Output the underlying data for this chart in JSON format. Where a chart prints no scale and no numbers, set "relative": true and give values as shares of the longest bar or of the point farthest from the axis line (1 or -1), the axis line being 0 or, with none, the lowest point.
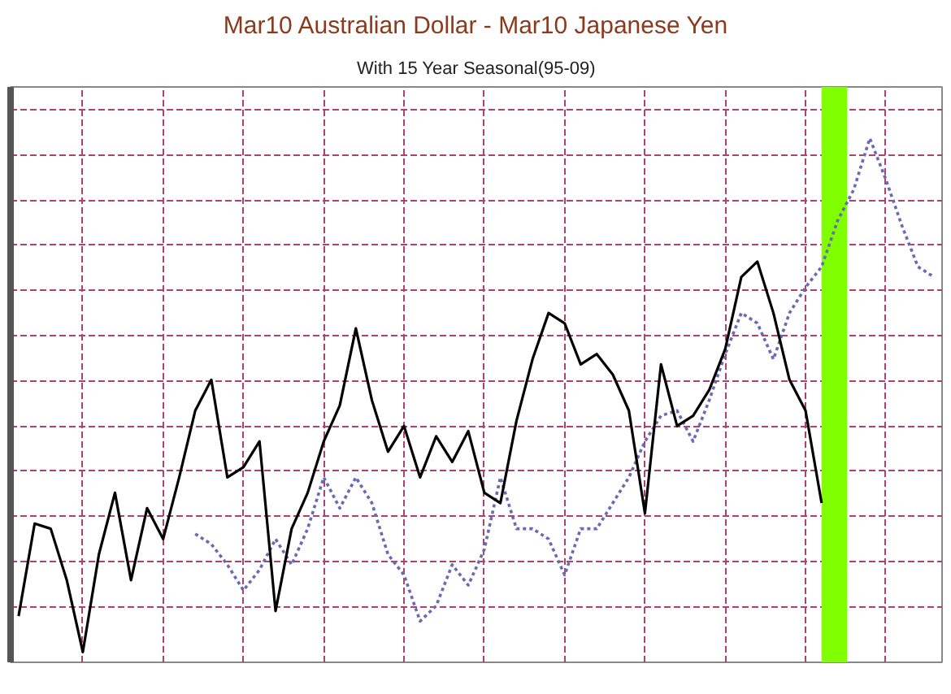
{
  "chart_data": {
    "type": "line",
    "title": "Mar10 Australian Dollar - Mar10 Japanese Yen",
    "subtitle": "With 15 Year Seasonal(95-09)",
    "relative": true,
    "tick_labels": false,
    "grid": true,
    "categories": [
      null,
      null,
      null,
      null,
      null,
      null,
      null,
      null,
      null,
      null,
      null,
      null,
      null,
      null,
      null,
      null,
      null,
      null,
      null,
      null,
      null,
      null,
      null,
      null,
      null,
      null,
      null,
      null,
      null,
      null,
      null,
      null,
      null,
      null,
      null,
      null,
      null,
      null,
      null,
      null,
      null,
      null,
      null,
      null,
      null,
      null,
      null,
      null,
      null,
      null,
      null,
      null,
      null,
      null,
      null,
      null,
      null,
      null
    ],
    "series": [
      {
        "color": "#000000",
        "line_style": "solid",
        "values": [
          0.07,
          0.25,
          0.24,
          0.14,
          0,
          0.19,
          0.31,
          0.14,
          0.28,
          0.22,
          0.34,
          0.47,
          0.53,
          0.34,
          0.36,
          0.41,
          0.08,
          0.24,
          0.31,
          0.41,
          0.48,
          0.63,
          0.49,
          0.39,
          0.44,
          0.34,
          0.42,
          0.37,
          0.43,
          0.31,
          0.29,
          0.45,
          0.57,
          0.66,
          0.64,
          0.56,
          0.58,
          0.54,
          0.47,
          0.27,
          0.56,
          0.44,
          0.46,
          0.51,
          0.59,
          0.73,
          0.76,
          0.66,
          0.53,
          0.47,
          0.29,
          null,
          null,
          null,
          null,
          null,
          null,
          null
        ]
      },
      {
        "color": "#6a6ab4",
        "line_style": "dotted",
        "values": [
          null,
          null,
          null,
          null,
          null,
          null,
          null,
          null,
          null,
          null,
          null,
          0.23,
          0.21,
          0.17,
          0.12,
          0.16,
          0.22,
          0.17,
          0.24,
          0.34,
          0.28,
          0.34,
          0.29,
          0.19,
          0.15,
          0.06,
          0.09,
          0.17,
          0.13,
          0.2,
          0.34,
          0.24,
          0.24,
          0.22,
          0.15,
          0.24,
          0.24,
          0.29,
          0.34,
          0.41,
          0.46,
          0.47,
          0.41,
          0.49,
          0.58,
          0.66,
          0.64,
          0.57,
          0.66,
          0.71,
          0.75,
          0.84,
          0.9,
          1,
          0.92,
          0.83,
          0.75,
          0.73
        ]
      }
    ]
  }
}
